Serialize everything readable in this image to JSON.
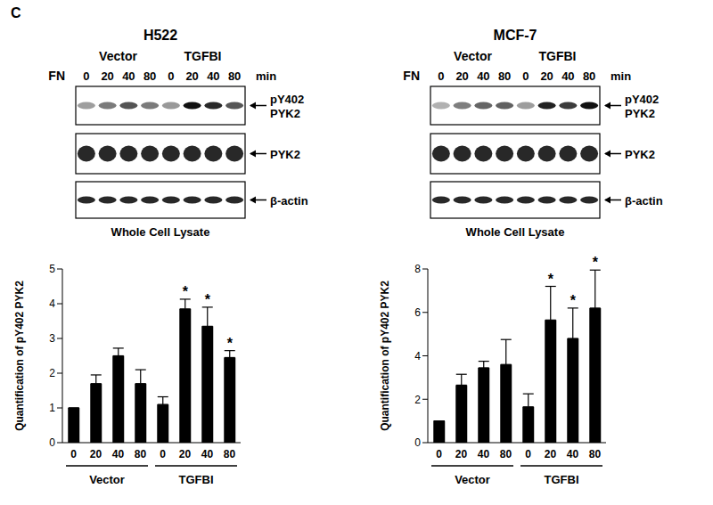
{
  "panel_label": "C",
  "blots": [
    {
      "title": "H522",
      "treatment": "FN",
      "group_labels": [
        "Vector",
        "TGFBI"
      ],
      "time_points": [
        0,
        20,
        40,
        80,
        0,
        20,
        40,
        80
      ],
      "time_unit": "min",
      "rows": [
        [
          "pY402",
          "PYK2"
        ],
        [
          "PYK2"
        ],
        [
          "β-actin"
        ]
      ],
      "caption": "Whole Cell Lysate"
    },
    {
      "title": "MCF-7",
      "treatment": "FN",
      "group_labels": [
        "Vector",
        "TGFBI"
      ],
      "time_points": [
        0,
        20,
        40,
        80,
        0,
        20,
        40,
        80
      ],
      "time_unit": "min",
      "rows": [
        [
          "pY402",
          "PYK2"
        ],
        [
          "PYK2"
        ],
        [
          "β-actin"
        ]
      ],
      "caption": "Whole Cell Lysate"
    }
  ],
  "chart_data": [
    {
      "type": "bar",
      "y_label": "Quantification of pY402 PYK2",
      "categories": [
        "0",
        "20",
        "40",
        "80",
        "0",
        "20",
        "40",
        "80"
      ],
      "values": [
        1,
        1.7,
        2.5,
        1.7,
        1.1,
        3.85,
        3.35,
        2.45
      ],
      "errors": [
        0,
        0.25,
        0.22,
        0.4,
        0.22,
        0.28,
        0.55,
        0.2
      ],
      "group_labels": [
        "Vector",
        "TGFBI"
      ],
      "annotations": [
        {
          "index": 5,
          "text": "*"
        },
        {
          "index": 6,
          "text": "*"
        },
        {
          "index": 7,
          "text": "*"
        }
      ],
      "color": "#000000",
      "ylim": [
        0,
        5
      ],
      "yticks": [
        0,
        1,
        2,
        3,
        4,
        5
      ]
    },
    {
      "type": "bar",
      "y_label": "Quantification of pY402 PYK2",
      "categories": [
        "0",
        "20",
        "40",
        "80",
        "0",
        "20",
        "40",
        "80"
      ],
      "values": [
        1,
        2.65,
        3.45,
        3.6,
        1.65,
        5.65,
        4.8,
        6.2
      ],
      "errors": [
        0,
        0.5,
        0.3,
        1.15,
        0.6,
        1.55,
        1.4,
        1.75
      ],
      "group_labels": [
        "Vector",
        "TGFBI"
      ],
      "annotations": [
        {
          "index": 5,
          "text": "*"
        },
        {
          "index": 6,
          "text": "*"
        },
        {
          "index": 7,
          "text": "*"
        }
      ],
      "color": "#000000",
      "ylim": [
        0,
        8
      ],
      "yticks": [
        0,
        2,
        4,
        6,
        8
      ]
    }
  ]
}
